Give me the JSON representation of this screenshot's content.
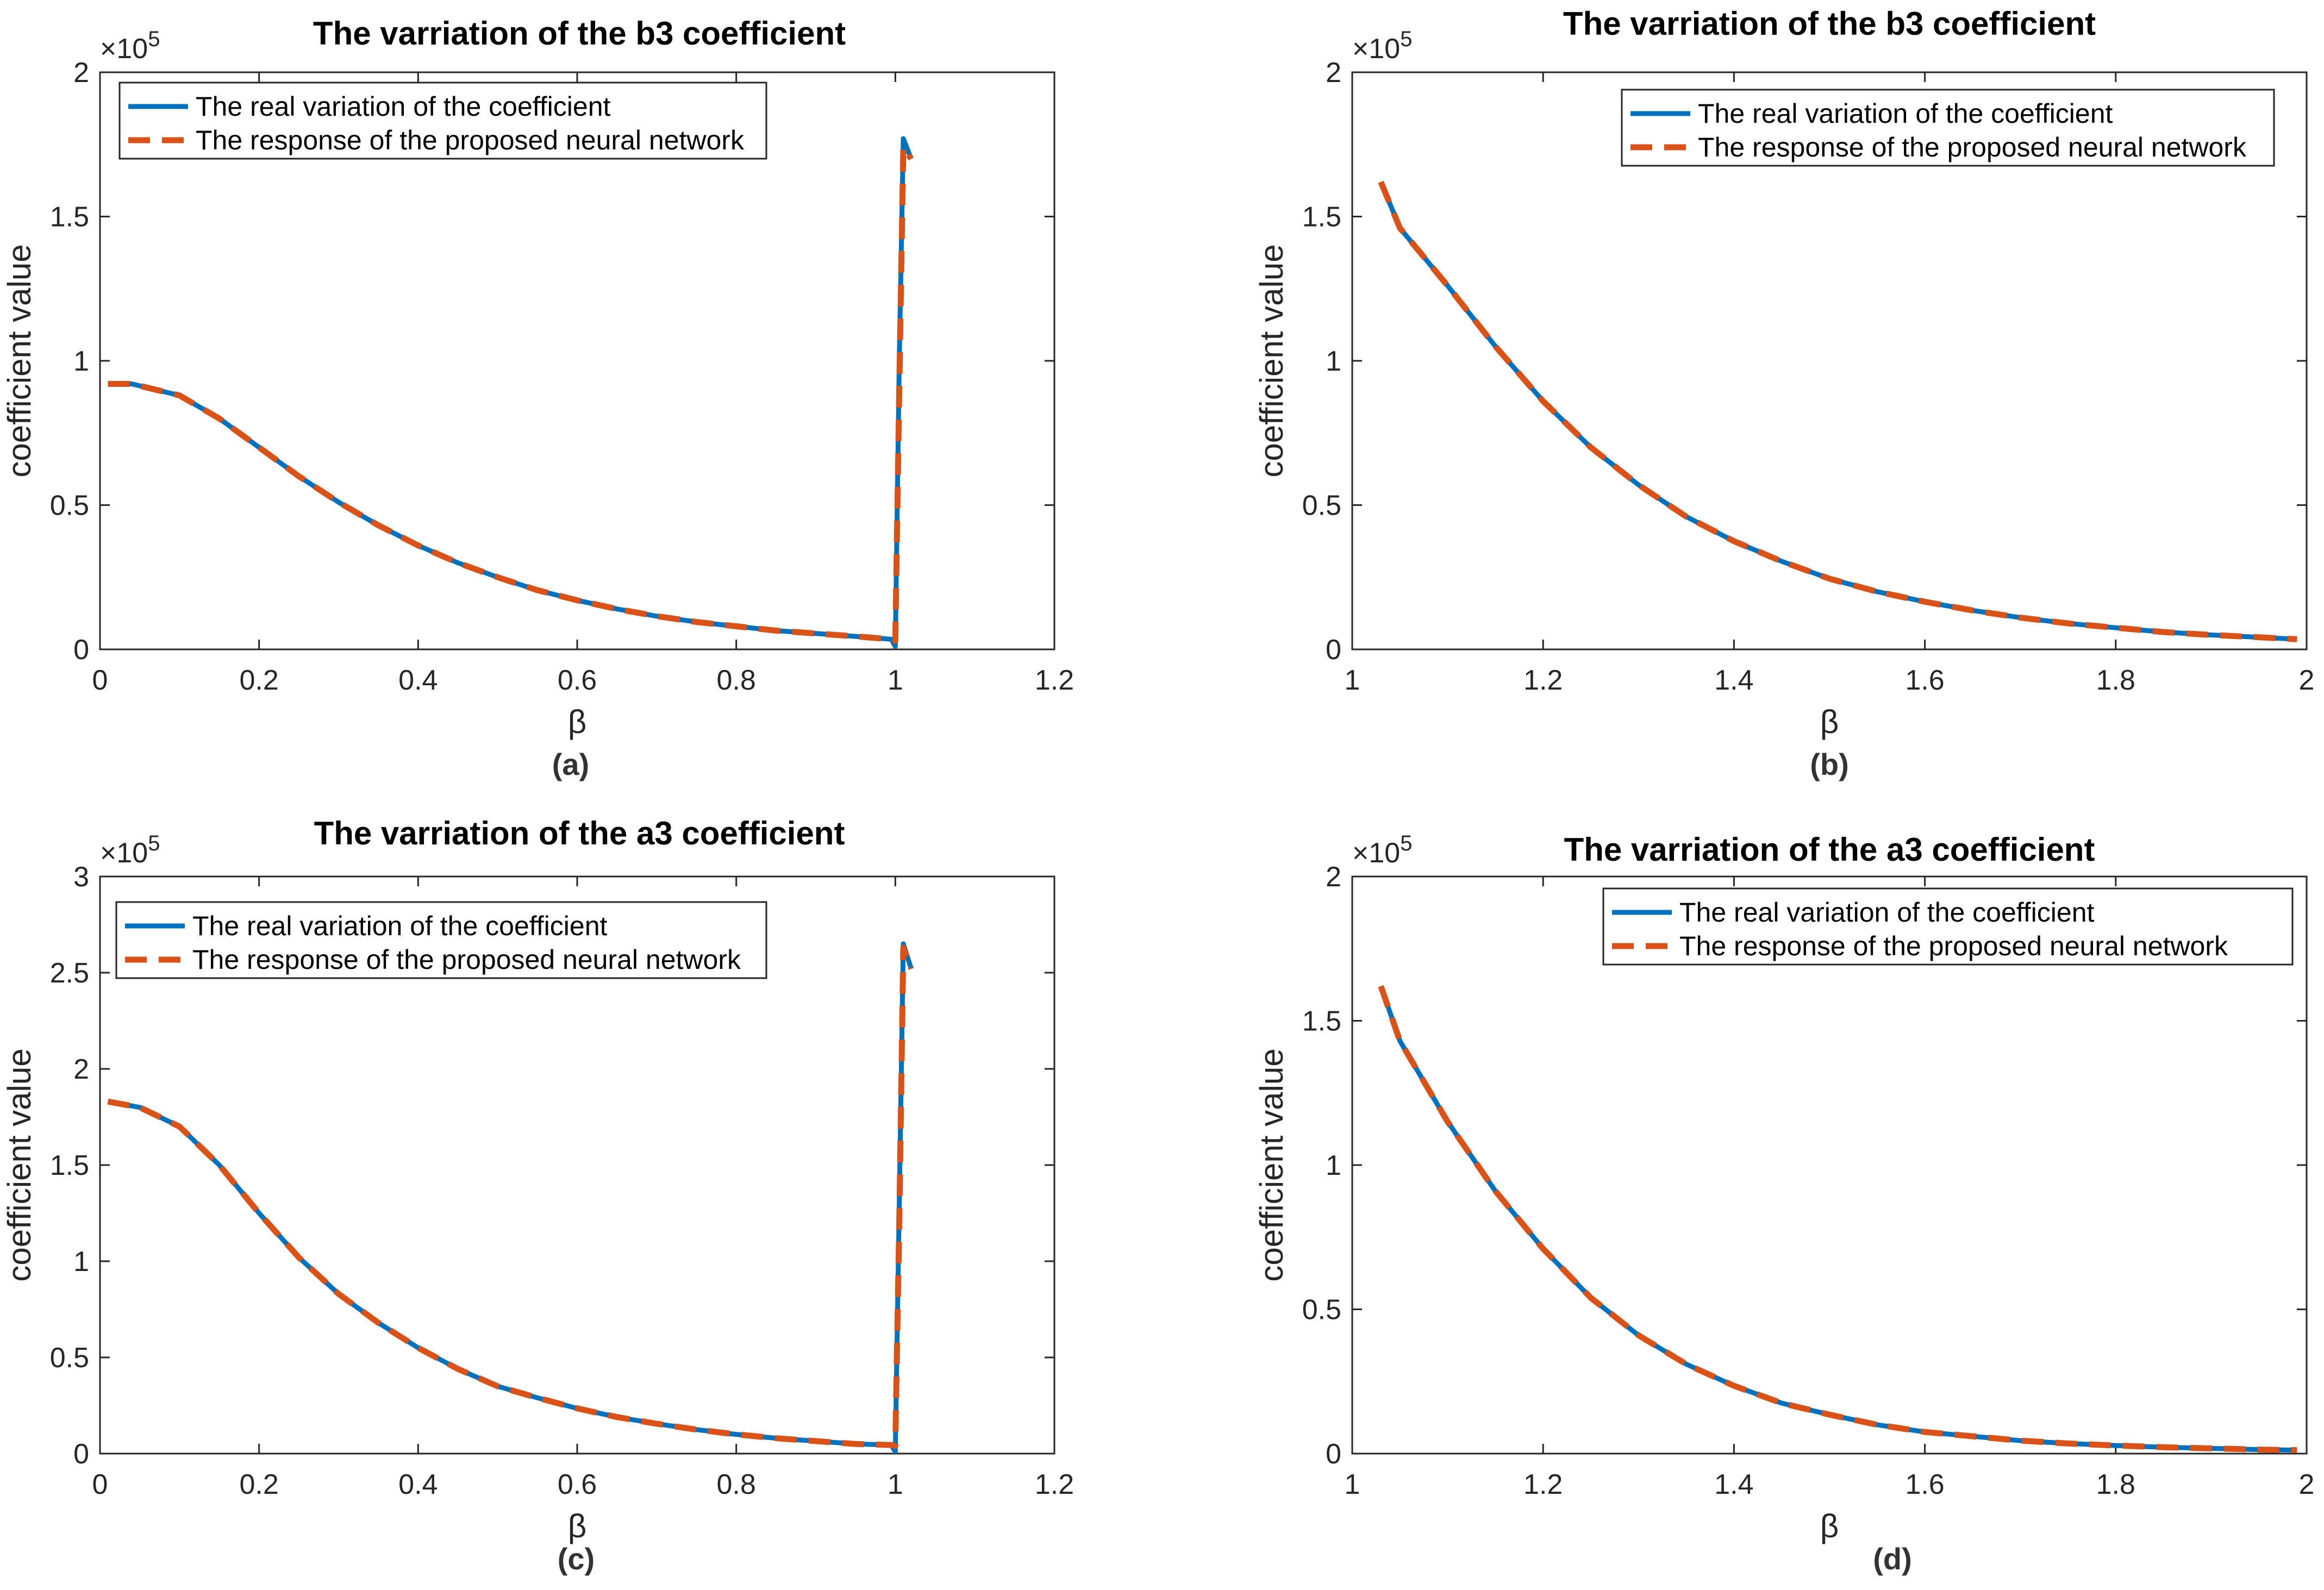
{
  "figure": {
    "panels": [
      {
        "id": "a",
        "title": "The varriation of the b3 coefficient",
        "caption": "(a)",
        "xlabel": "β",
        "ylabel": "coefficient value",
        "exponent": "×10",
        "exponent_power": "5",
        "xticks": [
          "0",
          "0.2",
          "0.4",
          "0.6",
          "0.8",
          "1",
          "1.2"
        ],
        "yticks": [
          "0",
          "0.5",
          "1",
          "1.5",
          "2"
        ],
        "legend": [
          "The real variation of the coefficient",
          "The response of the proposed neural network"
        ]
      },
      {
        "id": "b",
        "title": "The varriation of the b3 coefficient",
        "caption": "(b)",
        "xlabel": "β",
        "ylabel": "coefficient value",
        "exponent": "×10",
        "exponent_power": "5",
        "xticks": [
          "1",
          "1.2",
          "1.4",
          "1.6",
          "1.8",
          "2"
        ],
        "yticks": [
          "0",
          "0.5",
          "1",
          "1.5",
          "2"
        ],
        "legend": [
          "The real variation of the coefficient",
          "The response of the proposed neural network"
        ]
      },
      {
        "id": "c",
        "title": "The varriation of the a3 coefficient",
        "caption": "(c)",
        "xlabel": "β",
        "ylabel": "coefficient value",
        "exponent": "×10",
        "exponent_power": "5",
        "xticks": [
          "0",
          "0.2",
          "0.4",
          "0.6",
          "0.8",
          "1",
          "1.2"
        ],
        "yticks": [
          "0",
          "0.5",
          "1",
          "1.5",
          "2",
          "2.5",
          "3"
        ],
        "legend": [
          "The real variation of the coefficient",
          "The response of the proposed neural network"
        ]
      },
      {
        "id": "d",
        "title": "The varriation of the a3 coefficient",
        "caption": "(d)",
        "xlabel": "β",
        "ylabel": "coefficient value",
        "exponent": "×10",
        "exponent_power": "5",
        "xticks": [
          "1",
          "1.2",
          "1.4",
          "1.6",
          "1.8",
          "2"
        ],
        "yticks": [
          "0",
          "0.5",
          "1",
          "1.5",
          "2"
        ],
        "legend": [
          "The real variation of the coefficient",
          "The response of the proposed neural network"
        ]
      }
    ],
    "colors": {
      "real": "#0072BD",
      "nn": "#D95319",
      "axis": "#262626"
    }
  },
  "chart_data": [
    {
      "type": "line",
      "title": "The varriation of the b3 coefficient",
      "xlabel": "β",
      "ylabel": "coefficient value",
      "xlim": [
        0,
        1.2
      ],
      "ylim": [
        0,
        200000
      ],
      "grid": false,
      "legend_position": "top-left",
      "series": [
        {
          "name": "The real variation of the coefficient",
          "x": [
            0.01,
            0.04,
            0.1,
            0.15,
            0.2,
            0.25,
            0.3,
            0.35,
            0.4,
            0.45,
            0.5,
            0.55,
            0.6,
            0.65,
            0.7,
            0.75,
            0.8,
            0.85,
            0.9,
            0.95,
            0.995,
            1.0,
            1.005,
            1.01,
            1.02
          ],
          "y": [
            92000,
            92000,
            88000,
            80000,
            70000,
            60000,
            51000,
            43000,
            36000,
            30000,
            25000,
            20500,
            17000,
            14000,
            11500,
            9500,
            8000,
            6500,
            5500,
            4500,
            3500,
            1000,
            100000,
            177000,
            170000
          ]
        },
        {
          "name": "The response of the proposed neural network",
          "x": [
            0.01,
            0.04,
            0.1,
            0.15,
            0.2,
            0.25,
            0.3,
            0.35,
            0.4,
            0.45,
            0.5,
            0.55,
            0.6,
            0.65,
            0.7,
            0.75,
            0.8,
            0.85,
            0.9,
            0.95,
            0.995,
            1.0,
            1.005,
            1.01,
            1.02
          ],
          "y": [
            92000,
            92000,
            88000,
            80000,
            70000,
            60000,
            51000,
            43000,
            36000,
            30000,
            25000,
            20500,
            17000,
            14000,
            11500,
            9500,
            8000,
            6500,
            5500,
            4500,
            3500,
            3000,
            90000,
            174000,
            170000
          ]
        }
      ]
    },
    {
      "type": "line",
      "title": "The varriation of the b3 coefficient",
      "xlabel": "β",
      "ylabel": "coefficient value",
      "xlim": [
        1,
        2
      ],
      "ylim": [
        0,
        200000
      ],
      "grid": false,
      "legend_position": "top-right",
      "series": [
        {
          "name": "The real variation of the coefficient",
          "x": [
            1.03,
            1.05,
            1.1,
            1.15,
            1.2,
            1.25,
            1.3,
            1.35,
            1.4,
            1.45,
            1.5,
            1.55,
            1.6,
            1.65,
            1.7,
            1.75,
            1.8,
            1.85,
            1.9,
            1.95,
            1.99
          ],
          "y": [
            162000,
            146000,
            126000,
            105000,
            86000,
            70000,
            57000,
            46000,
            37500,
            30500,
            24500,
            20000,
            16500,
            13500,
            11000,
            9000,
            7500,
            6000,
            5000,
            4200,
            3500
          ]
        },
        {
          "name": "The response of the proposed neural network",
          "x": [
            1.03,
            1.05,
            1.1,
            1.15,
            1.2,
            1.25,
            1.3,
            1.35,
            1.4,
            1.45,
            1.5,
            1.55,
            1.6,
            1.65,
            1.7,
            1.75,
            1.8,
            1.85,
            1.9,
            1.95,
            1.99
          ],
          "y": [
            162000,
            146000,
            126000,
            105000,
            86000,
            70000,
            57000,
            46000,
            37500,
            30500,
            24500,
            20000,
            16500,
            13500,
            11000,
            9000,
            7500,
            6000,
            5000,
            4200,
            3500
          ]
        }
      ]
    },
    {
      "type": "line",
      "title": "The varriation of the a3 coefficient",
      "xlabel": "β",
      "ylabel": "coefficient value",
      "xlim": [
        0,
        1.2
      ],
      "ylim": [
        0,
        300000
      ],
      "grid": false,
      "legend_position": "top-left",
      "series": [
        {
          "name": "The real variation of the coefficient",
          "x": [
            0.01,
            0.05,
            0.1,
            0.15,
            0.2,
            0.25,
            0.3,
            0.35,
            0.4,
            0.45,
            0.5,
            0.55,
            0.6,
            0.65,
            0.7,
            0.75,
            0.8,
            0.85,
            0.9,
            0.95,
            0.995,
            1.0,
            1.005,
            1.01,
            1.02
          ],
          "y": [
            183000,
            180000,
            170000,
            150000,
            125000,
            102000,
            83000,
            68000,
            55000,
            44000,
            35000,
            29000,
            23500,
            19000,
            15500,
            12500,
            10000,
            8000,
            6500,
            5000,
            4500,
            1000,
            130000,
            265000,
            252000
          ]
        },
        {
          "name": "The response of the proposed neural network",
          "x": [
            0.01,
            0.05,
            0.1,
            0.15,
            0.2,
            0.25,
            0.3,
            0.35,
            0.4,
            0.45,
            0.5,
            0.55,
            0.6,
            0.65,
            0.7,
            0.75,
            0.8,
            0.85,
            0.9,
            0.95,
            0.995,
            1.0,
            1.005,
            1.01,
            1.02
          ],
          "y": [
            183000,
            180000,
            170000,
            150000,
            125000,
            102000,
            83000,
            68000,
            55000,
            44000,
            35000,
            29000,
            23500,
            19000,
            15500,
            12500,
            10000,
            8000,
            6500,
            5000,
            4500,
            4000,
            120000,
            263000,
            252000
          ]
        }
      ]
    },
    {
      "type": "line",
      "title": "The varriation of the a3 coefficient",
      "xlabel": "β",
      "ylabel": "coefficient value",
      "xlim": [
        1,
        2
      ],
      "ylim": [
        0,
        200000
      ],
      "grid": false,
      "legend_position": "top-right",
      "series": [
        {
          "name": "The real variation of the coefficient",
          "x": [
            1.03,
            1.05,
            1.1,
            1.15,
            1.2,
            1.25,
            1.3,
            1.35,
            1.4,
            1.45,
            1.5,
            1.55,
            1.6,
            1.65,
            1.7,
            1.75,
            1.8,
            1.85,
            1.9,
            1.95,
            1.99
          ],
          "y": [
            162000,
            143000,
            115000,
            91000,
            71000,
            54000,
            41000,
            31000,
            23500,
            17500,
            13500,
            10000,
            7500,
            6000,
            4500,
            3500,
            2800,
            2200,
            1800,
            1400,
            1200
          ]
        },
        {
          "name": "The response of the proposed neural network",
          "x": [
            1.03,
            1.05,
            1.1,
            1.15,
            1.2,
            1.25,
            1.3,
            1.35,
            1.4,
            1.45,
            1.5,
            1.55,
            1.6,
            1.65,
            1.7,
            1.75,
            1.8,
            1.85,
            1.9,
            1.95,
            1.99
          ],
          "y": [
            162000,
            143000,
            115000,
            91000,
            71000,
            54000,
            41000,
            31000,
            23500,
            17500,
            13500,
            10000,
            7500,
            6000,
            4500,
            3500,
            2800,
            2200,
            1800,
            1400,
            1200
          ]
        }
      ]
    }
  ]
}
